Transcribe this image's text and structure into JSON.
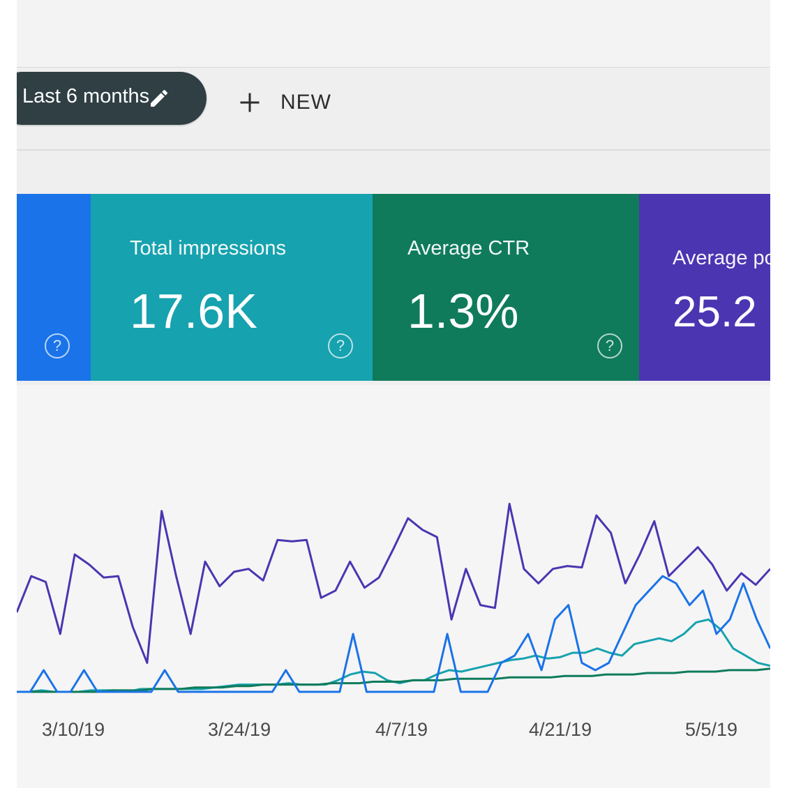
{
  "toolbar": {
    "date_filter_label": "Last 6 months",
    "new_label": "NEW"
  },
  "metrics": [
    {
      "title": "",
      "value": "",
      "color": "#1a73e8"
    },
    {
      "title": "Total impressions",
      "value": "17.6K",
      "color": "#16a2ae"
    },
    {
      "title": "Average CTR",
      "value": "1.3%",
      "color": "#0f7b5b"
    },
    {
      "title": "Average pos",
      "value": "25.2",
      "color": "#4b35b1"
    }
  ],
  "icons": {
    "edit": "pencil-icon",
    "new": "plus-icon",
    "help": "question-circle-icon"
  },
  "chart_data": {
    "type": "line",
    "x_tick_labels": [
      "3/10/19",
      "3/24/19",
      "4/7/19",
      "4/21/19",
      "5/5/19"
    ],
    "series": [
      {
        "color": "#4b35b1",
        "values": [
          55,
          80,
          76,
          40,
          95,
          88,
          79,
          80,
          45,
          20,
          125,
          80,
          40,
          90,
          73,
          83,
          85,
          77,
          105,
          104,
          105,
          65,
          70,
          90,
          72,
          79,
          99,
          120,
          112,
          107,
          50,
          85,
          60,
          58,
          130,
          85,
          75,
          85,
          87,
          86,
          122,
          110,
          75,
          95,
          118,
          80,
          90,
          100,
          88,
          70,
          82,
          74,
          85
        ]
      },
      {
        "color": "#16a2ae",
        "values": [
          0,
          0,
          1,
          0,
          0,
          0,
          1,
          1,
          1,
          0,
          2,
          2,
          2,
          2,
          2,
          2,
          3,
          4,
          5,
          5,
          5,
          5,
          6,
          5,
          5,
          5,
          8,
          12,
          14,
          13,
          8,
          6,
          8,
          8,
          12,
          15,
          14,
          16,
          18,
          20,
          22,
          23,
          25,
          23,
          24,
          27,
          27,
          30,
          27,
          25,
          33,
          35,
          37,
          35,
          40,
          48,
          50,
          43,
          30,
          25,
          20,
          18
        ]
      },
      {
        "color": "#0f7b5b",
        "values": [
          0,
          0,
          0,
          0,
          0,
          0,
          0,
          1,
          1,
          1,
          2,
          2,
          2,
          3,
          3,
          3,
          4,
          4,
          5,
          5,
          5,
          5,
          5,
          6,
          6,
          6,
          7,
          7,
          7,
          8,
          8,
          8,
          9,
          9,
          9,
          9,
          10,
          10,
          10,
          10,
          11,
          11,
          11,
          12,
          12,
          12,
          13,
          13,
          13,
          14,
          14,
          14,
          15,
          15,
          15,
          16
        ]
      },
      {
        "color": "#1a73e8",
        "values": [
          0,
          0,
          15,
          0,
          0,
          15,
          0,
          0,
          0,
          0,
          0,
          15,
          0,
          0,
          0,
          0,
          0,
          0,
          0,
          0,
          15,
          0,
          0,
          0,
          0,
          40,
          0,
          0,
          0,
          0,
          0,
          0,
          40,
          0,
          0,
          0,
          20,
          25,
          40,
          15,
          50,
          60,
          20,
          15,
          20,
          40,
          60,
          70,
          80,
          75,
          60,
          70,
          40,
          50,
          75,
          50,
          30
        ]
      }
    ]
  }
}
